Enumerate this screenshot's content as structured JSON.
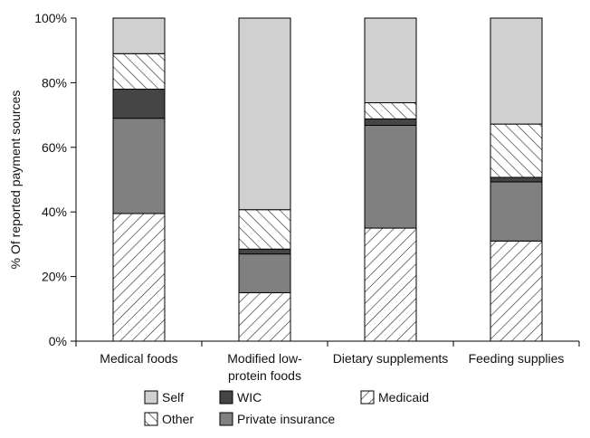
{
  "chart_data": {
    "type": "bar",
    "stacked": true,
    "ylabel": "% Of reported payment sources",
    "ylim": [
      0,
      100
    ],
    "yticks": [
      "0%",
      "20%",
      "40%",
      "60%",
      "80%",
      "100%"
    ],
    "categories": [
      "Medical foods",
      "Modified low-protein foods",
      "Dietary supplements",
      "Feeding supplies"
    ],
    "category_lines": [
      [
        "Medical foods"
      ],
      [
        "Modified low-",
        "protein foods"
      ],
      [
        "Dietary supplements"
      ],
      [
        "Feeding supplies"
      ]
    ],
    "series": [
      {
        "name": "Medicaid",
        "pattern": "hatch-forward",
        "color": "#ffffff",
        "values": [
          39.5,
          15,
          35,
          31
        ]
      },
      {
        "name": "Private insurance",
        "pattern": "solid",
        "color": "#808080",
        "values": [
          29.5,
          12,
          31.8,
          18.3
        ]
      },
      {
        "name": "WIC",
        "pattern": "solid",
        "color": "#454545",
        "values": [
          9,
          1.5,
          2,
          1.4
        ]
      },
      {
        "name": "Other",
        "pattern": "hatch-back",
        "color": "#ffffff",
        "values": [
          11,
          12.2,
          5,
          16.5
        ]
      },
      {
        "name": "Self",
        "pattern": "solid",
        "color": "#d0d0d0",
        "values": [
          11,
          59.3,
          26.2,
          32.8
        ]
      }
    ],
    "legend": {
      "placement": "bottom",
      "entries": [
        "Self",
        "WIC",
        "Medicaid",
        "Other",
        "Private insurance"
      ]
    },
    "grid": false
  }
}
